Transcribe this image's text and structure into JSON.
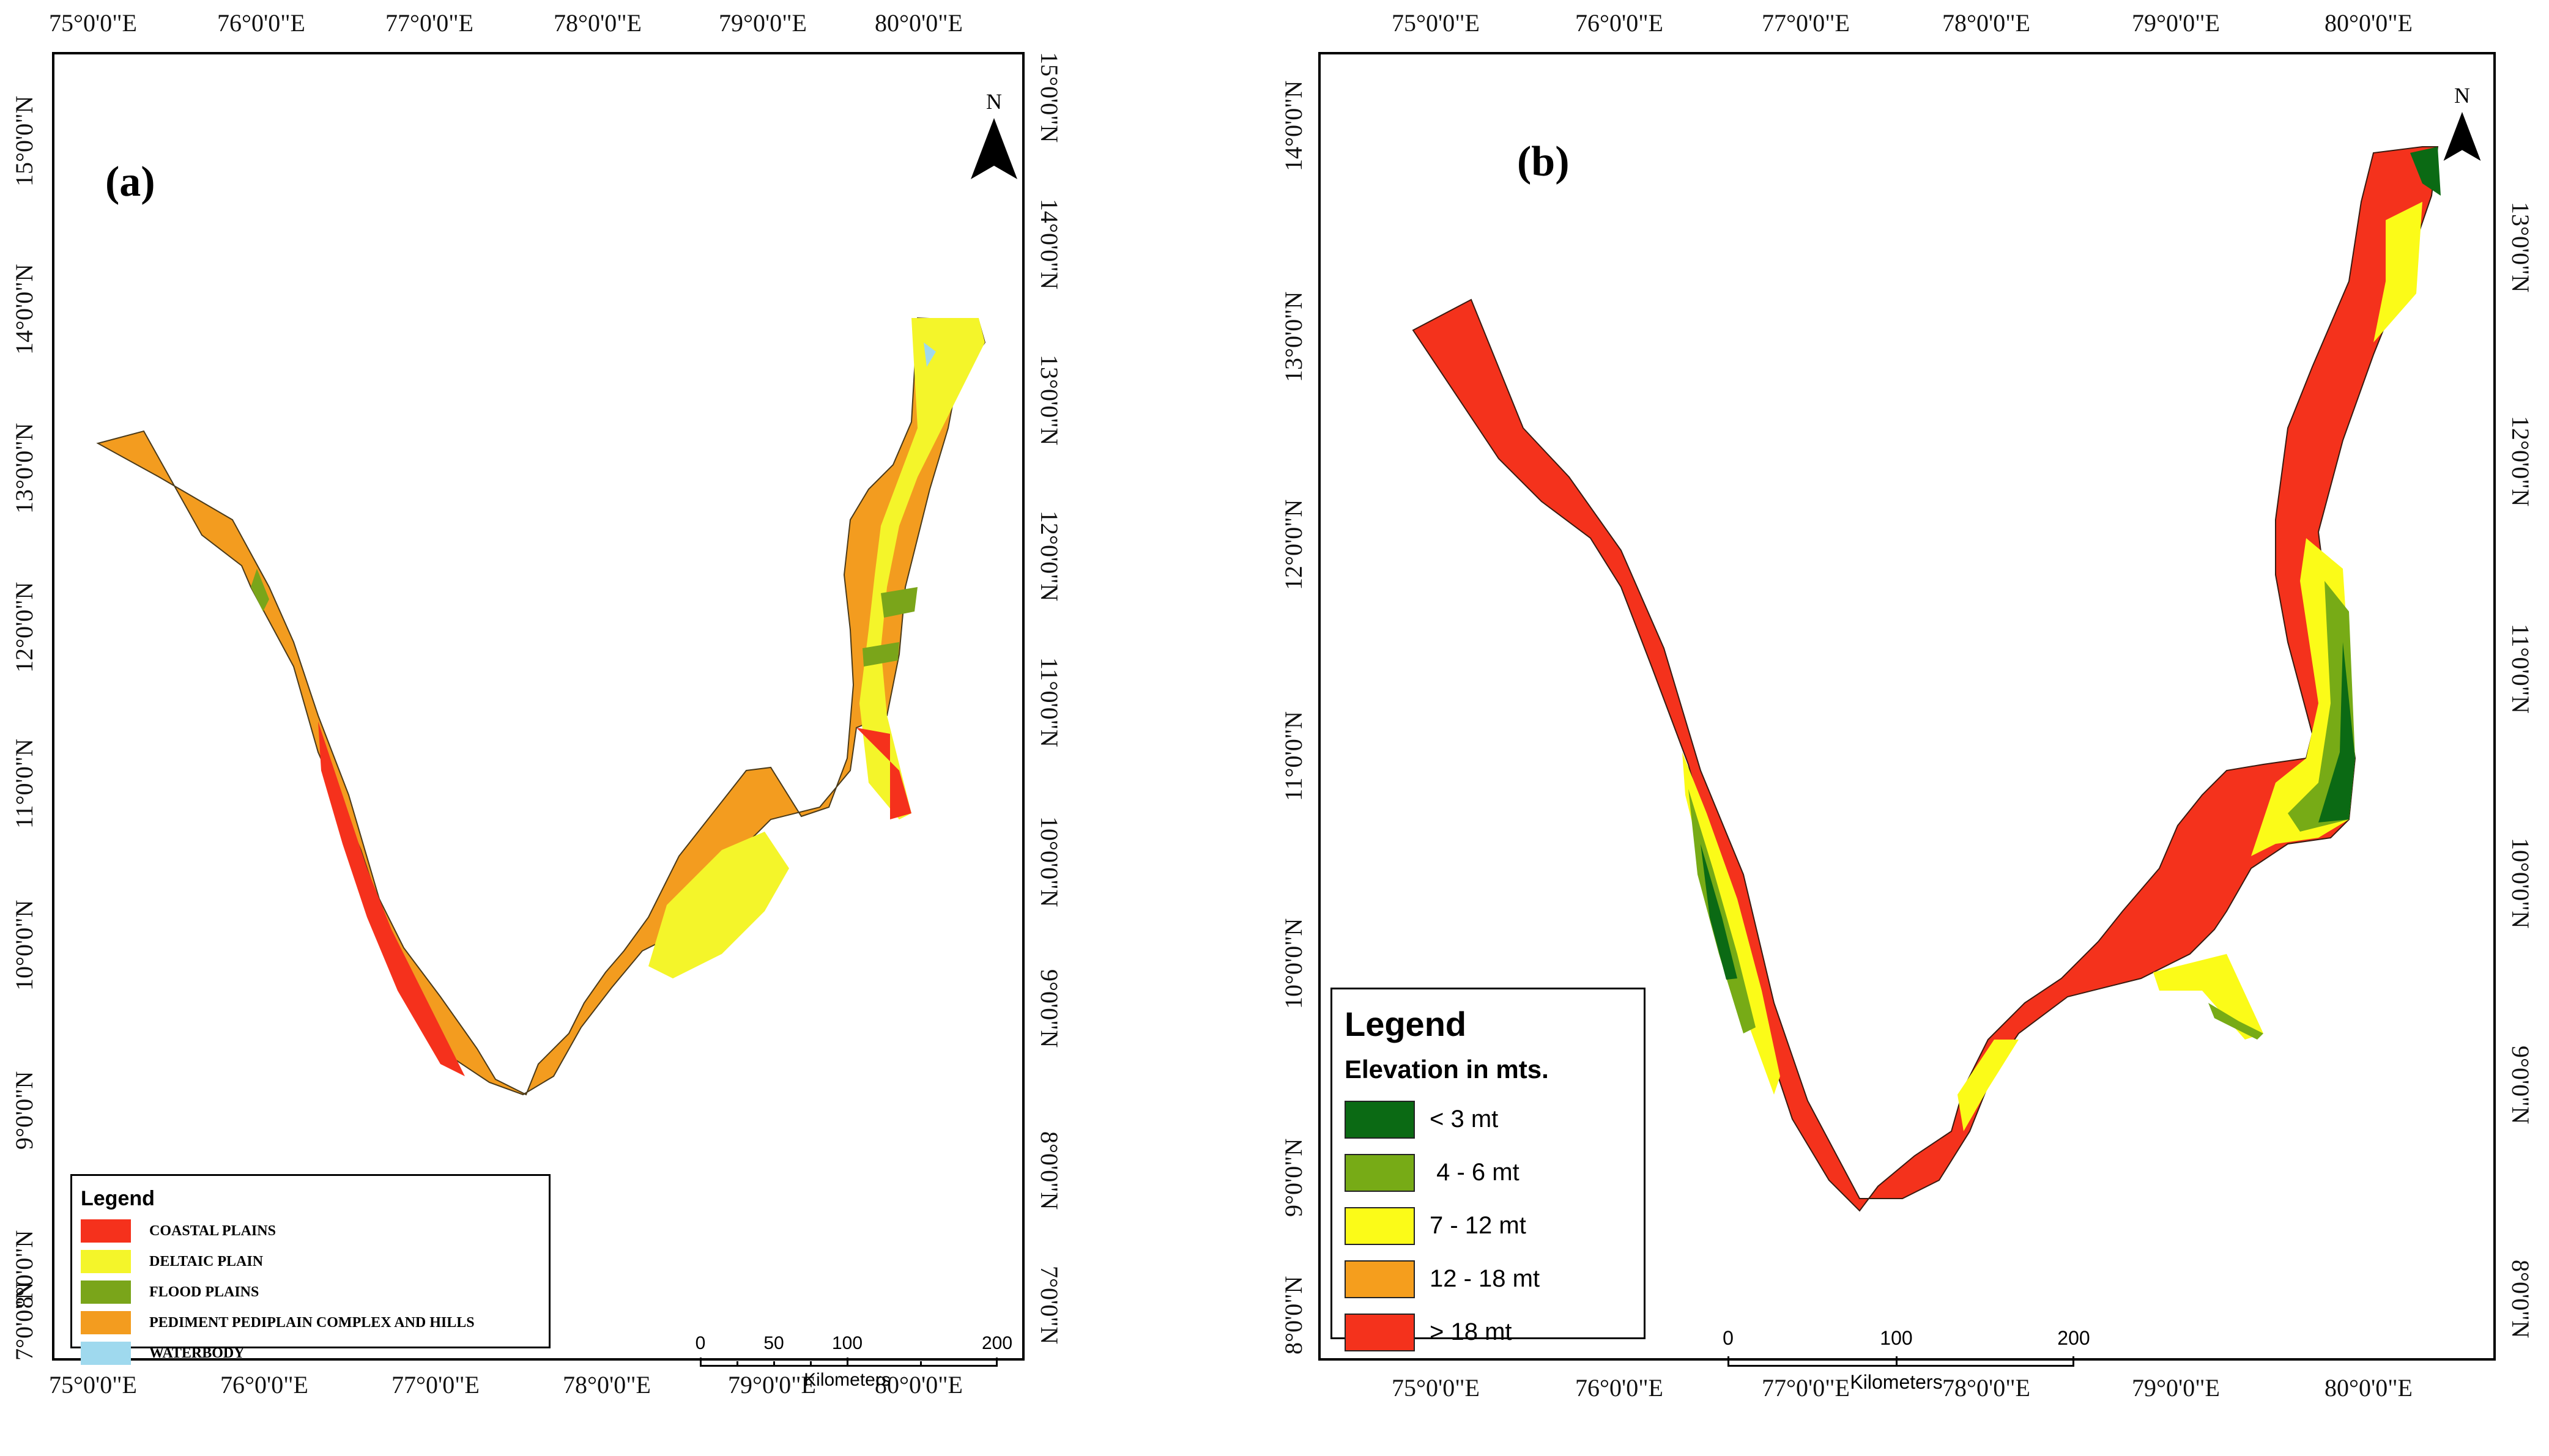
{
  "panel_a": {
    "label": "(a)",
    "north": "N",
    "lon_ticks": [
      "75°0'0\"E",
      "76°0'0\"E",
      "77°0'0\"E",
      "78°0'0\"E",
      "79°0'0\"E",
      "80°0'0\"E"
    ],
    "lat_ticks_left": [
      "15°0'0\"N",
      "14°0'0\"N",
      "13°0'0\"N",
      "12°0'0\"N",
      "11°0'0\"N",
      "10°0'0\"N",
      "9°0'0\"N",
      "8°0'0\"N",
      "7°0'0\"N"
    ],
    "lat_ticks_right": [
      "15°0'0\"N",
      "14°0'0\"N",
      "13°0'0\"N",
      "12°0'0\"N",
      "11°0'0\"N",
      "10°0'0\"N",
      "9°0'0\"N",
      "8°0'0\"N",
      "7°0'0\"N"
    ],
    "legend": {
      "title": "Legend",
      "items": [
        {
          "label": "COASTAL PLAINS",
          "color": "#f5311c"
        },
        {
          "label": "DELTAIC PLAIN",
          "color": "#f4f52a"
        },
        {
          "label": "FLOOD PLAINS",
          "color": "#7aa51a"
        },
        {
          "label": "PEDIMENT PEDIPLAIN COMPLEX AND HILLS",
          "color": "#f39c1f"
        },
        {
          "label": "WATERBODY",
          "color": "#9fd9ee"
        }
      ]
    },
    "scalebar": {
      "ticks": [
        "0",
        "50",
        "100",
        "200"
      ],
      "unit": "Kilometers"
    }
  },
  "panel_b": {
    "label": "(b)",
    "north": "N",
    "lon_ticks": [
      "75°0'0\"E",
      "76°0'0\"E",
      "77°0'0\"E",
      "78°0'0\"E",
      "79°0'0\"E",
      "80°0'0\"E"
    ],
    "lat_ticks_left": [
      "14°0'0\"N",
      "13°0'0\"N",
      "12°0'0\"N",
      "11°0'0\"N",
      "10°0'0\"N",
      "9°0'0\"N",
      "8°0'0\"N"
    ],
    "lat_ticks_right": [
      "13°0'0\"N",
      "12°0'0\"N",
      "11°0'0\"N",
      "10°0'0\"N",
      "9°0'0\"N",
      "8°0'0\"N"
    ],
    "legend": {
      "title": "Legend",
      "subtitle": "Elevation in mts.",
      "items": [
        {
          "label": "< 3 mt",
          "color": "#0b6a14"
        },
        {
          "label": " 4 - 6 mt",
          "color": "#77ab16"
        },
        {
          "label": "7 - 12 mt",
          "color": "#fbfb18"
        },
        {
          "label": "12 - 18 mt",
          "color": "#f59e1d"
        },
        {
          "label": "> 18 mt",
          "color": "#f4321c"
        }
      ]
    },
    "scalebar": {
      "ticks": [
        "0",
        "100",
        "200"
      ],
      "unit": "Kilometers"
    }
  }
}
